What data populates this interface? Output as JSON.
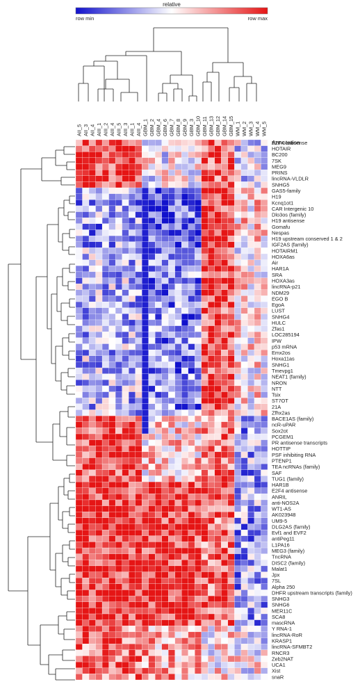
{
  "chart_data": {
    "type": "heatmap",
    "title": "",
    "colorbar": {
      "label": "relative",
      "min_label": "row min",
      "max_label": "row max",
      "colors": [
        "#1111cc",
        "#ffffff",
        "#e51515"
      ]
    },
    "annotation_header": "Annotation",
    "columns": [
      "AII_5",
      "AII_3",
      "AII_4",
      "AIII_1",
      "AIII_2",
      "AIII_4",
      "AIII_5",
      "AIII_3",
      "AIII_1",
      "AIII_4",
      "GBM_1",
      "GBM_2",
      "GBM_4",
      "GBM_6",
      "GBM_7",
      "GBM_8",
      "GBM_9",
      "GBM_3",
      "GBM_10",
      "GBM_11",
      "GBM_13",
      "GBM_12",
      "GBM_14",
      "GBM_15",
      "WM_1",
      "WM_2",
      "WM_3",
      "WM_4",
      "WM_5"
    ],
    "rows": [
      "E2F4 antisense",
      "HOTAIR",
      "BC200",
      "7SK",
      "MEG9",
      "PRINS",
      "lincRNA-VLDLR",
      "SNHG5",
      "GAS5-family",
      "H19",
      "Kcnq1ot1",
      "CAR Intergenic 10",
      "Dlo3os (family)",
      "H19 antisense",
      "Gomafu",
      "Nespas",
      "H19 upstream conserved 1 & 2",
      "IGF2AS (family)",
      "HOTAIRM1",
      "HOXA6as",
      "Air",
      "HAR1A",
      "SRA",
      "HOXA3as",
      "lincRNA-p21",
      "NDM29",
      "EGO B",
      "EgoA",
      "LUST",
      "SNHG4",
      "HULC",
      "Zfas1",
      "LOC285194",
      "IPW",
      "p53 mRNA",
      "Emx2os",
      "Hoxa11as",
      "SNHG1",
      "Tmevpg1",
      "NEAT1 (family)",
      "NRON",
      "NTT",
      "Tsix",
      "ST7OT",
      "21A",
      "Zfhx2as",
      "BACE1AS (family)",
      "ncR-uPAR",
      "Sox2ot",
      "PCGEM1",
      "PR antisense transcripts",
      "HOTTIP",
      "PSF inhibiting RNA",
      "PTENP1",
      "TEA ncRNAs (family)",
      "SAF",
      "TUG1 (family)",
      "HAR1B",
      "E2F4 antisense",
      "ANRIL",
      "anti-NOS2A",
      "WT1-AS",
      "AK023948",
      "UM9-5",
      "DLG2AS (family)",
      "Evf1 and EVF2",
      "antiPeg11",
      "L1PA16",
      "MEG3 (family)",
      "TncRNA",
      "DISC2 (family)",
      "Malat1",
      "Jpx",
      "7SL",
      "Alpha 250",
      "DHFR upstream transcripts (family)",
      "SNHG3",
      "SNHG6",
      "MER11C",
      "SCA8",
      "mascRNA",
      "Y RNA-1",
      "lincRNA-RoR",
      "KRASP1",
      "lincRNA-SFMBT2",
      "RNCR3",
      "Zeb2NAT",
      "UCA1",
      "Xist",
      "snaR"
    ]
  }
}
